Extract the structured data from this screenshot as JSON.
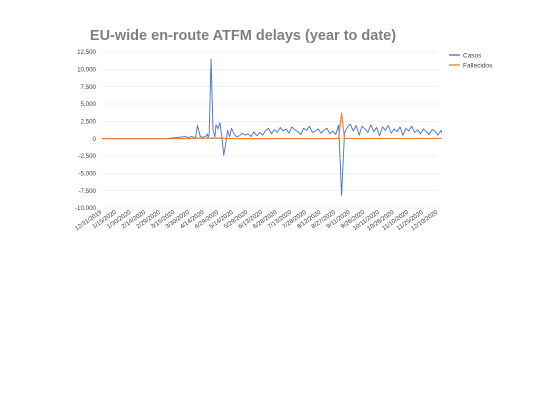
{
  "chart_data": {
    "type": "line",
    "title": "EU-wide en-route ATFM delays (year to date)",
    "xlabel": "",
    "ylabel": "",
    "ylim": [
      -10000,
      12500
    ],
    "yticks": [
      "12,500",
      "10,000",
      "7,500",
      "5,000",
      "2,500",
      "0",
      "-2,500",
      "-5,000",
      "-7,500",
      "-10,000"
    ],
    "xticks": [
      "12/31/2019",
      "1/15/2020",
      "1/30/2020",
      "2/14/2020",
      "2/29/2020",
      "3/15/2020",
      "3/30/2020",
      "4/14/2020",
      "4/29/2020",
      "5/14/2020",
      "5/29/2020",
      "6/13/2020",
      "6/28/2020",
      "7/13/2020",
      "7/28/2020",
      "8/12/2020",
      "8/27/2020",
      "9/11/2020",
      "9/26/2020",
      "10/11/2020",
      "10/26/2020",
      "11/10/2020",
      "11/25/2020",
      "12/10/2020"
    ],
    "grid": true,
    "legend_position": "top-right",
    "x": [
      "12/31/2019",
      "1/31/2020",
      "2/29/2020",
      "3/3/2020",
      "3/8/2020",
      "3/12/2020",
      "3/16/2020",
      "3/19/2020",
      "3/22/2020",
      "3/26/2020",
      "3/29/2020",
      "4/1/2020",
      "4/3/2020",
      "4/5/2020",
      "4/7/2020",
      "4/10/2020",
      "4/13/2020",
      "4/16/2020",
      "4/17/2020",
      "4/18/2020",
      "4/19/2020",
      "4/21/2020",
      "4/23/2020",
      "4/25/2020",
      "4/26/2020",
      "4/28/2020",
      "4/30/2020",
      "5/2/2020",
      "5/4/2020",
      "5/6/2020",
      "5/8/2020",
      "5/10/2020",
      "5/12/2020",
      "5/14/2020",
      "5/17/2020",
      "5/20/2020",
      "5/23/2020",
      "5/26/2020",
      "5/29/2020",
      "6/1/2020",
      "6/4/2020",
      "6/7/2020",
      "6/10/2020",
      "6/13/2020",
      "6/16/2020",
      "6/19/2020",
      "6/22/2020",
      "6/25/2020",
      "6/28/2020",
      "7/1/2020",
      "7/4/2020",
      "7/7/2020",
      "7/10/2020",
      "7/13/2020",
      "7/16/2020",
      "7/19/2020",
      "7/22/2020",
      "7/25/2020",
      "7/28/2020",
      "7/31/2020",
      "8/3/2020",
      "8/6/2020",
      "8/9/2020",
      "8/12/2020",
      "8/15/2020",
      "8/18/2020",
      "8/21/2020",
      "8/24/2020",
      "8/27/2020",
      "8/30/2020",
      "9/2/2020",
      "9/5/2020",
      "9/8/2020",
      "9/11/2020",
      "9/14/2020",
      "9/17/2020",
      "9/20/2020",
      "9/23/2020",
      "9/26/2020",
      "9/29/2020",
      "10/2/2020",
      "10/5/2020",
      "10/8/2020",
      "10/11/2020",
      "10/14/2020",
      "10/17/2020",
      "10/20/2020",
      "10/23/2020",
      "10/26/2020",
      "10/29/2020",
      "11/1/2020",
      "11/4/2020",
      "11/7/2020",
      "11/10/2020",
      "11/13/2020",
      "11/16/2020",
      "11/19/2020",
      "11/22/2020",
      "11/25/2020",
      "11/28/2020",
      "12/1/2020",
      "12/4/2020",
      "12/7/2020",
      "12/10/2020",
      "12/13/2020",
      "12/14/2020"
    ],
    "series": [
      {
        "name": "Casos",
        "color": "#4472c4",
        "values": [
          0,
          0,
          0,
          0,
          50,
          100,
          150,
          200,
          250,
          300,
          150,
          350,
          200,
          100,
          1900,
          300,
          200,
          400,
          700,
          250,
          500,
          11500,
          1200,
          300,
          2000,
          1400,
          2300,
          400,
          -2400,
          -700,
          1200,
          300,
          1500,
          800,
          300,
          400,
          800,
          500,
          700,
          300,
          1000,
          400,
          900,
          500,
          1200,
          1500,
          700,
          1300,
          900,
          1600,
          1100,
          1400,
          800,
          1700,
          1300,
          1000,
          600,
          1500,
          1200,
          1800,
          900,
          1100,
          1400,
          800,
          1200,
          1500,
          700,
          1100,
          600,
          2000,
          -8200,
          800,
          1700,
          2100,
          1100,
          1900,
          500,
          1800,
          1400,
          900,
          2000,
          1000,
          1600,
          400,
          1700,
          1200,
          1900,
          800,
          1400,
          1000,
          1700,
          500,
          1500,
          1100,
          1800,
          900,
          1300,
          700,
          1400,
          1000,
          600,
          1300,
          1100,
          500,
          1200,
          800
        ]
      },
      {
        "name": "Fallecidos",
        "color": "#ed7d31",
        "values": [
          0,
          0,
          0,
          0,
          0,
          0,
          5,
          10,
          20,
          30,
          40,
          50,
          60,
          70,
          80,
          90,
          100,
          110,
          120,
          130,
          120,
          110,
          100,
          120,
          110,
          90,
          100,
          80,
          70,
          60,
          50,
          40,
          30,
          40,
          30,
          20,
          30,
          20,
          25,
          20,
          15,
          20,
          15,
          10,
          15,
          10,
          15,
          10,
          20,
          15,
          10,
          20,
          15,
          10,
          15,
          20,
          10,
          15,
          20,
          10,
          15,
          20,
          10,
          15,
          20,
          10,
          15,
          20,
          10,
          15,
          3700,
          20,
          25,
          30,
          25,
          20,
          30,
          25,
          30,
          35,
          30,
          25,
          30,
          35,
          30,
          25,
          30,
          35,
          30,
          25,
          30,
          25,
          30,
          35,
          30,
          25,
          30,
          35,
          30,
          25,
          30,
          25,
          30,
          35,
          30,
          25
        ]
      }
    ]
  }
}
